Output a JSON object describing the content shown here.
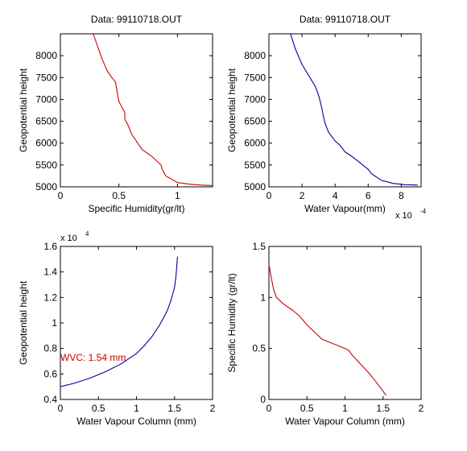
{
  "chart_data": [
    {
      "type": "line",
      "title": "Data: 99110718.OUT",
      "xlabel": "Specific Humidity(gr/lt)",
      "ylabel": "Geopotential height",
      "xlim": [
        0,
        1.3
      ],
      "ylim": [
        5000,
        8500
      ],
      "xticks": [
        0,
        0.5,
        1
      ],
      "xtick_labels": [
        "0",
        "0.5",
        "1"
      ],
      "yticks": [
        5000,
        5500,
        6000,
        6500,
        7000,
        7500,
        8000
      ],
      "ytick_labels": [
        "5000",
        "5500",
        "6000",
        "6500",
        "7000",
        "7500",
        "8000"
      ],
      "grid": false,
      "color": "#cc0000",
      "series": [
        {
          "x": [
            0.28,
            0.32,
            0.36,
            0.4,
            0.44,
            0.47,
            0.48,
            0.49,
            0.5,
            0.52,
            0.55,
            0.55,
            0.58,
            0.61,
            0.66,
            0.7,
            0.78,
            0.86,
            0.87,
            0.9,
            1.0,
            1.1,
            1.2,
            1.3
          ],
          "y": [
            8500,
            8200,
            7900,
            7650,
            7500,
            7400,
            7250,
            7100,
            6950,
            6850,
            6700,
            6550,
            6400,
            6200,
            6000,
            5850,
            5700,
            5500,
            5400,
            5250,
            5100,
            5060,
            5040,
            5030
          ]
        }
      ]
    },
    {
      "type": "line",
      "title": "Data: 99110718.OUT",
      "xlabel": "Water Vapour(mm)",
      "ylabel": "Geopotential height",
      "xlim": [
        0,
        9.2
      ],
      "ylim": [
        5000,
        8500
      ],
      "xticks": [
        0,
        2,
        4,
        6,
        8
      ],
      "xtick_labels": [
        "0",
        "2",
        "4",
        "6",
        "8"
      ],
      "yticks": [
        5000,
        5500,
        6000,
        6500,
        7000,
        7500,
        8000
      ],
      "ytick_labels": [
        "5000",
        "5500",
        "6000",
        "6500",
        "7000",
        "7500",
        "8000"
      ],
      "x_exponent_label": "x 10",
      "x_exponent_power": "-4",
      "grid": false,
      "color": "#000099",
      "series": [
        {
          "x": [
            1.3,
            1.6,
            2.0,
            2.4,
            2.8,
            3.0,
            3.1,
            3.2,
            3.3,
            3.4,
            3.5,
            3.6,
            4.0,
            4.3,
            4.6,
            5.0,
            5.5,
            6.0,
            6.2,
            6.8,
            7.5,
            8.2,
            9.0
          ],
          "y": [
            8500,
            8150,
            7800,
            7550,
            7300,
            7100,
            6950,
            6800,
            6600,
            6450,
            6350,
            6250,
            6050,
            5950,
            5800,
            5700,
            5550,
            5400,
            5300,
            5150,
            5080,
            5050,
            5040
          ]
        }
      ]
    },
    {
      "type": "line",
      "title": "",
      "xlabel": "Water Vapour Column (mm)",
      "ylabel": "Geopotential height",
      "xlim": [
        0,
        2
      ],
      "ylim": [
        4000,
        16000
      ],
      "xticks": [
        0,
        0.5,
        1,
        1.5,
        2
      ],
      "xtick_labels": [
        "0",
        "0.5",
        "1",
        "1.5",
        "2"
      ],
      "yticks": [
        4000,
        6000,
        8000,
        10000,
        12000,
        14000,
        16000
      ],
      "ytick_labels": [
        "0.4",
        "0.6",
        "0.8",
        "1",
        "1.2",
        "1.4",
        "1.6"
      ],
      "y_exponent_label": "x 10",
      "y_exponent_power": "4",
      "grid": false,
      "color": "#000099",
      "annotation": {
        "text": "WVC: 1.54 mm",
        "x": 0.0,
        "y": 6900,
        "color": "#cc0000"
      },
      "series": [
        {
          "x": [
            0,
            0.2,
            0.4,
            0.6,
            0.8,
            1.0,
            1.1,
            1.2,
            1.3,
            1.4,
            1.45,
            1.5,
            1.52,
            1.53,
            1.54
          ],
          "y": [
            5000,
            5300,
            5700,
            6200,
            6800,
            7600,
            8200,
            8900,
            9800,
            10900,
            11700,
            12800,
            13700,
            14500,
            15200
          ]
        }
      ]
    },
    {
      "type": "line",
      "title": "",
      "xlabel": "Water Vapour Column (mm)",
      "ylabel": "Specific Humidity (gr/lt)",
      "xlim": [
        0,
        2
      ],
      "ylim": [
        0,
        1.5
      ],
      "xticks": [
        0,
        0.5,
        1,
        1.5,
        2
      ],
      "xtick_labels": [
        "0",
        "0.5",
        "1",
        "1.5",
        "2"
      ],
      "yticks": [
        0,
        0.5,
        1,
        1.5
      ],
      "ytick_labels": [
        "0",
        "0.5",
        "1",
        "1.5"
      ],
      "grid": false,
      "color": "#cc0000",
      "series": [
        {
          "x": [
            0.0,
            0.03,
            0.06,
            0.1,
            0.2,
            0.3,
            0.4,
            0.5,
            0.6,
            0.7,
            0.8,
            0.9,
            1.0,
            1.05,
            1.1,
            1.2,
            1.3,
            1.4,
            1.5,
            1.54
          ],
          "y": [
            1.32,
            1.2,
            1.08,
            1.0,
            0.93,
            0.88,
            0.82,
            0.73,
            0.66,
            0.59,
            0.56,
            0.53,
            0.5,
            0.48,
            0.43,
            0.35,
            0.27,
            0.18,
            0.08,
            0.04
          ]
        }
      ]
    }
  ]
}
